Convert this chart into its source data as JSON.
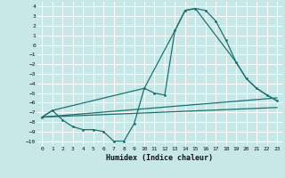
{
  "xlabel": "Humidex (Indice chaleur)",
  "xlim": [
    -0.5,
    23.5
  ],
  "ylim": [
    -10.5,
    4.5
  ],
  "yticks": [
    4,
    3,
    2,
    1,
    0,
    -1,
    -2,
    -3,
    -4,
    -5,
    -6,
    -7,
    -8,
    -9,
    -10
  ],
  "xticks": [
    0,
    1,
    2,
    3,
    4,
    5,
    6,
    7,
    8,
    9,
    10,
    11,
    12,
    13,
    14,
    15,
    16,
    17,
    18,
    19,
    20,
    21,
    22,
    23
  ],
  "bg_color": "#c8e8e8",
  "grid_color": "#ffffff",
  "line_color": "#1a7070",
  "line1_x": [
    0,
    1,
    2,
    3,
    4,
    5,
    6,
    7,
    8,
    9,
    10,
    11,
    12,
    13,
    14,
    15,
    16,
    17,
    18,
    19,
    20,
    21,
    22,
    23
  ],
  "line1_y": [
    -7.5,
    -6.8,
    -7.8,
    -8.5,
    -8.8,
    -8.8,
    -9.0,
    -10.0,
    -10.0,
    -8.2,
    -4.5,
    -5.0,
    -5.2,
    1.5,
    3.6,
    3.8,
    3.6,
    2.5,
    0.5,
    -1.8,
    -3.5,
    -4.5,
    -5.2,
    -5.8
  ],
  "line2_x": [
    0,
    1,
    10,
    13,
    14,
    15,
    19,
    20,
    21,
    22,
    23
  ],
  "line2_y": [
    -7.5,
    -6.8,
    -4.5,
    1.5,
    3.6,
    3.8,
    -1.8,
    -3.5,
    -4.5,
    -5.2,
    -5.8
  ],
  "line3_x": [
    0,
    23
  ],
  "line3_y": [
    -7.5,
    -5.5
  ],
  "line4_x": [
    0,
    23
  ],
  "line4_y": [
    -7.5,
    -6.5
  ]
}
